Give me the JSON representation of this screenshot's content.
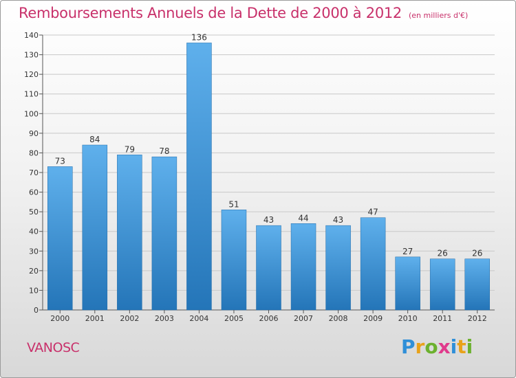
{
  "header": {
    "title": "Remboursements Annuels de la Dette de 2000 à 2012",
    "subtitle": "(en milliers d'€)"
  },
  "footer": {
    "commune": "VANOSC",
    "brand": "Proxiti",
    "brand_letters": [
      {
        "char": "P",
        "color": "#2f8fd8"
      },
      {
        "char": "r",
        "color": "#e8a21a"
      },
      {
        "char": "o",
        "color": "#6cb12e"
      },
      {
        "char": "x",
        "color": "#e03a8c"
      },
      {
        "char": "i",
        "color": "#2f8fd8"
      },
      {
        "char": "t",
        "color": "#e8a21a"
      },
      {
        "char": "i",
        "color": "#6cb12e"
      }
    ]
  },
  "chart_data": {
    "type": "bar",
    "title": "Remboursements Annuels de la Dette de 2000 à 2012",
    "subtitle": "(en milliers d'€)",
    "categories": [
      "2000",
      "2001",
      "2002",
      "2003",
      "2004",
      "2005",
      "2006",
      "2007",
      "2008",
      "2009",
      "2010",
      "2011",
      "2012"
    ],
    "values": [
      73,
      84,
      79,
      78,
      136,
      51,
      43,
      44,
      43,
      47,
      27,
      26,
      26
    ],
    "ylim": [
      0,
      140
    ],
    "yticks": [
      0,
      10,
      20,
      30,
      40,
      50,
      60,
      70,
      80,
      90,
      100,
      110,
      120,
      130,
      140
    ],
    "grid": true,
    "legend": "none",
    "colors": {
      "bar_top": "#5fb0ec",
      "bar_bottom": "#2475b8",
      "grid": "#c8c8c8"
    }
  }
}
